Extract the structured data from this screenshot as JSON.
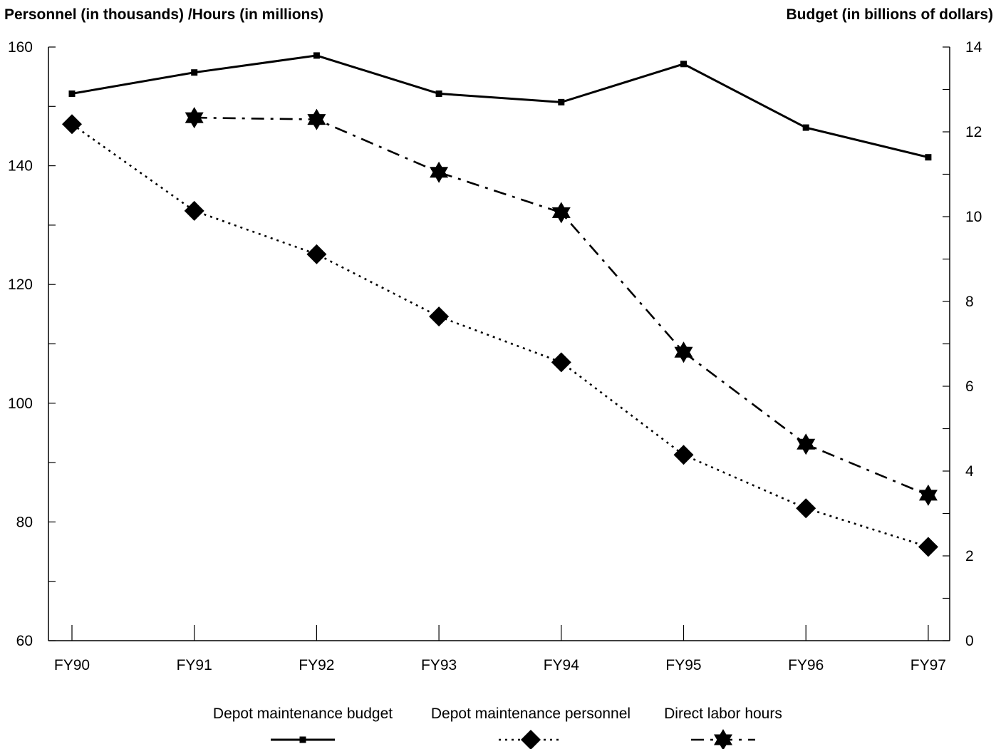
{
  "chart_data": {
    "type": "line",
    "categories": [
      "FY90",
      "FY91",
      "FY92",
      "FY93",
      "FY94",
      "FY95",
      "FY96",
      "FY97"
    ],
    "left_axis": {
      "label": "Personnel (in thousands) /Hours (in millions)",
      "ylim": [
        60,
        160
      ],
      "ticks": [
        60,
        80,
        100,
        120,
        140,
        160
      ]
    },
    "right_axis": {
      "label": "Budget (in billions of dollars)",
      "ylim": [
        0,
        14
      ],
      "ticks": [
        0,
        2,
        4,
        6,
        8,
        10,
        12,
        14
      ]
    },
    "series": [
      {
        "name": "Depot maintenance budget",
        "axis": "right",
        "style": "solid",
        "marker": "square",
        "values": [
          12.9,
          13.4,
          13.8,
          12.9,
          12.7,
          13.6,
          12.1,
          11.4
        ]
      },
      {
        "name": "Depot maintenance personnel",
        "axis": "left",
        "style": "dotted",
        "marker": "diamond",
        "values": [
          147,
          132.4,
          125.1,
          114.6,
          106.9,
          91.3,
          82.3,
          75.8
        ]
      },
      {
        "name": "Direct labor hours",
        "axis": "left",
        "style": "dashdot",
        "marker": "star",
        "values": [
          null,
          148.1,
          147.8,
          138.9,
          132.1,
          108.6,
          93.1,
          84.5
        ]
      }
    ],
    "grid": false,
    "legend_position": "bottom"
  }
}
